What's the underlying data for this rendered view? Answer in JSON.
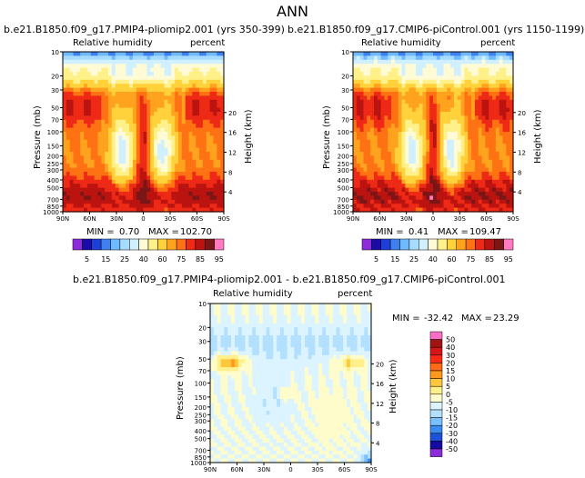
{
  "page": {
    "title": "ANN"
  },
  "chart_data": [
    {
      "type": "contour",
      "title": "b.e21.B1850.f09_g17.PMIP4-pliomip2.001 (yrs 350-399)",
      "left_subtitle": "Relative humidity",
      "right_subtitle": "percent",
      "ylabel": "Pressure (mb)",
      "y2label": "Height (km)",
      "xticks": [
        "90N",
        "60N",
        "30N",
        "0",
        "30S",
        "60S",
        "90S"
      ],
      "yticks": [
        "10",
        "20",
        "30",
        "50",
        "70",
        "100",
        "150",
        "200",
        "250",
        "300",
        "400",
        "500",
        "700",
        "850",
        "1000"
      ],
      "y2ticks": [
        "20",
        "16",
        "12",
        "8",
        "4"
      ],
      "min_label": "MIN =",
      "min_value": "0.70",
      "max_label": "MAX =",
      "max_value": "102.70",
      "colorbar": {
        "orientation": "horizontal",
        "levels": [
          "5",
          "15",
          "25",
          "40",
          "60",
          "75",
          "85",
          "95"
        ],
        "colors": [
          "#8c2bd9",
          "#1a0aa8",
          "#1d3fd8",
          "#3f80f0",
          "#6fb9ff",
          "#a6dcff",
          "#d0f0ff",
          "#fffbd6",
          "#fff18a",
          "#ffd23c",
          "#ffa21e",
          "#ff7214",
          "#ee2a16",
          "#bb1410",
          "#7a1616",
          "#ff7ac0"
        ]
      }
    },
    {
      "type": "contour",
      "title": "b.e21.B1850.f09_g17.CMIP6-piControl.001 (yrs 1150-1199)",
      "left_subtitle": "Relative humidity",
      "right_subtitle": "percent",
      "ylabel": "Pressure (mb)",
      "y2label": "Height (km)",
      "xticks": [
        "90N",
        "60N",
        "30N",
        "0",
        "30S",
        "60S",
        "90S"
      ],
      "yticks": [
        "10",
        "20",
        "30",
        "50",
        "70",
        "100",
        "150",
        "200",
        "250",
        "300",
        "400",
        "500",
        "700",
        "850",
        "1000"
      ],
      "y2ticks": [
        "20",
        "16",
        "12",
        "8",
        "4"
      ],
      "min_label": "MIN =",
      "min_value": "0.41",
      "max_label": "MAX =",
      "max_value": "109.47",
      "colorbar": {
        "orientation": "horizontal",
        "levels": [
          "5",
          "15",
          "25",
          "40",
          "60",
          "75",
          "85",
          "95"
        ],
        "colors": [
          "#8c2bd9",
          "#1a0aa8",
          "#1d3fd8",
          "#3f80f0",
          "#6fb9ff",
          "#a6dcff",
          "#d0f0ff",
          "#fffbd6",
          "#fff18a",
          "#ffd23c",
          "#ffa21e",
          "#ff7214",
          "#ee2a16",
          "#bb1410",
          "#7a1616",
          "#ff7ac0"
        ]
      }
    },
    {
      "type": "contour",
      "title": "b.e21.B1850.f09_g17.PMIP4-pliomip2.001 - b.e21.B1850.f09_g17.CMIP6-piControl.001",
      "left_subtitle": "Relative humidity",
      "right_subtitle": "percent",
      "ylabel": "Pressure (mb)",
      "y2label": "Height (km)",
      "xticks": [
        "90N",
        "60N",
        "30N",
        "0",
        "30S",
        "60S",
        "90S"
      ],
      "yticks": [
        "10",
        "20",
        "30",
        "50",
        "70",
        "100",
        "150",
        "200",
        "250",
        "300",
        "400",
        "500",
        "700",
        "850",
        "1000"
      ],
      "y2ticks": [
        "20",
        "16",
        "12",
        "8",
        "4"
      ],
      "min_label": "MIN =",
      "min_value": "-32.42",
      "max_label": "MAX =",
      "max_value": "23.29",
      "colorbar": {
        "orientation": "vertical",
        "levels": [
          "50",
          "40",
          "30",
          "20",
          "15",
          "10",
          "5",
          "0",
          "-5",
          "-10",
          "-15",
          "-20",
          "-30",
          "-40",
          "-50"
        ],
        "colors": [
          "#ff6ec7",
          "#a01414",
          "#d61616",
          "#ff2a14",
          "#ff6a14",
          "#ff9a1e",
          "#ffc83c",
          "#fff08c",
          "#fffccc",
          "#dcf4ff",
          "#b4e0ff",
          "#78c0ff",
          "#3c8cf0",
          "#1e50d8",
          "#140ca0",
          "#8c2bd9"
        ]
      }
    }
  ]
}
